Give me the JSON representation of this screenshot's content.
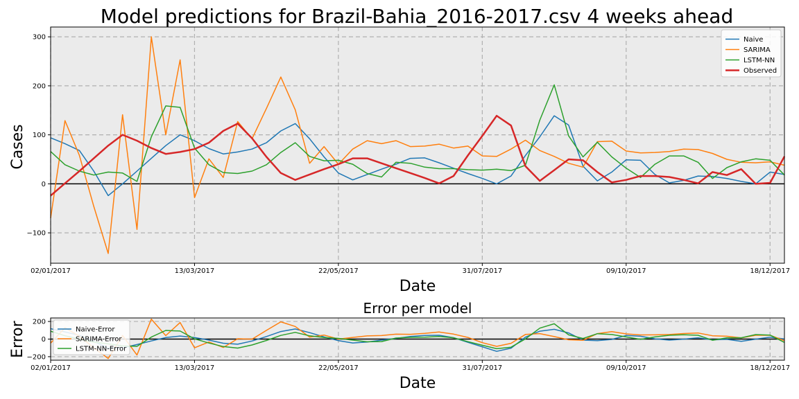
{
  "chart_data": [
    {
      "type": "line",
      "title": "Model predictions for Brazil-Bahia_2016-2017.csv 4 weeks ahead",
      "xlabel": "Date",
      "ylabel": "Cases",
      "x_tick_labels": [
        "02/01/2017",
        "13/03/2017",
        "22/05/2017",
        "31/07/2017",
        "09/10/2017",
        "18/12/2017"
      ],
      "x_tick_weeks": [
        0,
        10,
        20,
        30,
        40,
        50
      ],
      "xlim": [
        0,
        51
      ],
      "ylim": [
        -162,
        320
      ],
      "y_ticks": [
        -100,
        0,
        100,
        200,
        300
      ],
      "grid": true,
      "legend_position": "top-right",
      "series": [
        {
          "name": "Naive",
          "color": "#1f77b4",
          "width": 1.5,
          "values": [
            94,
            82,
            68,
            26,
            -24,
            0,
            26,
            52,
            78,
            100,
            88,
            72,
            61,
            65,
            71,
            84,
            108,
            123,
            92,
            55,
            22,
            8,
            19,
            30,
            40,
            52,
            53,
            43,
            32,
            21,
            11,
            0,
            16,
            58,
            96,
            139,
            120,
            36,
            6,
            24,
            49,
            48,
            19,
            2,
            7,
            16,
            15,
            11,
            5,
            0,
            24,
            19
          ]
        },
        {
          "name": "SARIMA",
          "color": "#ff7f0e",
          "width": 1.5,
          "values": [
            -70,
            129,
            58,
            -46,
            -142,
            141,
            -93,
            300,
            100,
            253,
            -28,
            51,
            13,
            127,
            92,
            154,
            218,
            151,
            42,
            76,
            40,
            71,
            88,
            82,
            88,
            76,
            77,
            81,
            73,
            77,
            57,
            56,
            71,
            89,
            68,
            56,
            42,
            34,
            86,
            87,
            67,
            63,
            64,
            66,
            71,
            70,
            62,
            50,
            44,
            43,
            45,
            38
          ]
        },
        {
          "name": "LSTM-NN",
          "color": "#2ca02c",
          "width": 1.5,
          "values": [
            66,
            39,
            26,
            18,
            24,
            22,
            5,
            96,
            159,
            156,
            73,
            39,
            23,
            21,
            26,
            39,
            64,
            84,
            56,
            47,
            48,
            40,
            21,
            14,
            44,
            42,
            34,
            31,
            31,
            29,
            28,
            30,
            27,
            38,
            130,
            202,
            98,
            55,
            85,
            55,
            32,
            13,
            40,
            57,
            57,
            44,
            11,
            33,
            45,
            51,
            48,
            18
          ]
        },
        {
          "name": "Observed",
          "color": "#d62728",
          "width": 2.5,
          "values": [
            -24,
            1,
            26,
            52,
            78,
            100,
            88,
            73,
            61,
            65,
            71,
            84,
            108,
            123,
            93,
            55,
            22,
            8,
            19,
            30,
            40,
            52,
            52,
            42,
            32,
            22,
            12,
            1,
            16,
            58,
            98,
            139,
            119,
            36,
            6,
            28,
            50,
            48,
            24,
            3,
            8,
            16,
            16,
            14,
            8,
            1,
            24,
            18,
            30,
            0,
            2,
            56
          ]
        }
      ]
    },
    {
      "type": "line",
      "title": "Error per model",
      "xlabel": "Date",
      "ylabel": "Error",
      "x_tick_labels": [
        "02/01/2017",
        "13/03/2017",
        "22/05/2017",
        "31/07/2017",
        "09/10/2017",
        "18/12/2017"
      ],
      "x_tick_weeks": [
        0,
        10,
        20,
        30,
        40,
        50
      ],
      "xlim": [
        0,
        51
      ],
      "ylim": [
        -240,
        240
      ],
      "y_ticks": [
        -200,
        0,
        200
      ],
      "grid": true,
      "legend_position": "top-left",
      "series": [
        {
          "name": "Naive-Error",
          "color": "#1f77b4",
          "width": 1.5,
          "values": [
            118,
            81,
            42,
            -26,
            -102,
            -100,
            -62,
            -21,
            17,
            35,
            17,
            -12,
            -47,
            -58,
            -22,
            29,
            86,
            115,
            73,
            25,
            -18,
            -44,
            -33,
            -12,
            8,
            30,
            41,
            43,
            16,
            -37,
            -87,
            -139,
            -103,
            22,
            90,
            111,
            70,
            -12,
            -18,
            -4,
            41,
            32,
            3,
            -12,
            -1,
            15,
            -9,
            -3,
            -25,
            -1,
            22,
            1
          ]
        },
        {
          "name": "SARIMA-Error",
          "color": "#ff7f0e",
          "width": 1.5,
          "values": [
            -46,
            128,
            32,
            -98,
            -220,
            41,
            -181,
            227,
            39,
            188,
            -99,
            -33,
            -95,
            4,
            -1,
            99,
            196,
            143,
            23,
            46,
            0,
            19,
            36,
            40,
            56,
            54,
            65,
            80,
            57,
            19,
            -41,
            -83,
            -48,
            53,
            62,
            28,
            -8,
            -14,
            62,
            84,
            59,
            47,
            48,
            52,
            63,
            69,
            38,
            32,
            14,
            43,
            43,
            -18
          ]
        },
        {
          "name": "LSTM-NN-Error",
          "color": "#2ca02c",
          "width": 1.5,
          "values": [
            90,
            38,
            0,
            -34,
            -54,
            -78,
            -83,
            23,
            98,
            91,
            2,
            -45,
            -85,
            -102,
            -67,
            -16,
            42,
            76,
            37,
            17,
            8,
            -12,
            -31,
            -28,
            12,
            20,
            22,
            30,
            15,
            -29,
            -70,
            -109,
            -92,
            2,
            124,
            174,
            48,
            7,
            61,
            52,
            24,
            -3,
            24,
            43,
            49,
            43,
            -13,
            15,
            15,
            51,
            46,
            -38
          ]
        }
      ]
    }
  ]
}
